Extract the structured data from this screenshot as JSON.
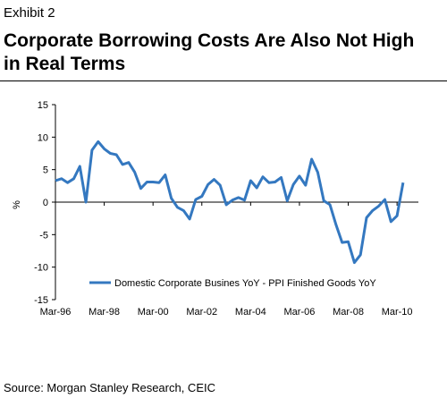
{
  "header": {
    "exhibit": "Exhibit 2",
    "title": "Corporate Borrowing Costs Are Also Not High in Real Terms"
  },
  "footer": {
    "source": "Source: Morgan Stanley Research, CEIC"
  },
  "colors": {
    "series": "#3478c0",
    "axis": "#000000"
  },
  "chart_data": {
    "type": "line",
    "title": "",
    "xlabel": "",
    "ylabel": "%",
    "ylim": [
      -15,
      15
    ],
    "yticks": [
      15,
      10,
      5,
      0,
      -5,
      -10,
      -15
    ],
    "xticks": [
      "Mar-96",
      "Mar-98",
      "Mar-00",
      "Mar-02",
      "Mar-04",
      "Mar-06",
      "Mar-08",
      "Mar-10"
    ],
    "grid": false,
    "legend_position": "bottom-right",
    "series": [
      {
        "name": "Domestic Corporate Busines YoY - PPI Finished Goods YoY",
        "x": [
          "Mar-96",
          "Jun-96",
          "Sep-96",
          "Dec-96",
          "Mar-97",
          "Jun-97",
          "Sep-97",
          "Dec-97",
          "Mar-98",
          "Jun-98",
          "Sep-98",
          "Dec-98",
          "Mar-99",
          "Jun-99",
          "Sep-99",
          "Dec-99",
          "Mar-00",
          "Jun-00",
          "Sep-00",
          "Dec-00",
          "Mar-01",
          "Jun-01",
          "Sep-01",
          "Dec-01",
          "Mar-02",
          "Jun-02",
          "Sep-02",
          "Dec-02",
          "Mar-03",
          "Jun-03",
          "Sep-03",
          "Dec-03",
          "Mar-04",
          "Jun-04",
          "Sep-04",
          "Dec-04",
          "Mar-05",
          "Jun-05",
          "Sep-05",
          "Dec-05",
          "Mar-06",
          "Jun-06",
          "Sep-06",
          "Dec-06",
          "Mar-07",
          "Jun-07",
          "Sep-07",
          "Dec-07",
          "Mar-08",
          "Jun-08",
          "Sep-08",
          "Dec-08",
          "Mar-09",
          "Jun-09",
          "Sep-09",
          "Dec-09",
          "Mar-10",
          "Jun-10"
        ],
        "values": [
          3.3,
          3.6,
          3.0,
          3.6,
          5.5,
          0.0,
          8.0,
          9.3,
          8.2,
          7.5,
          7.3,
          5.8,
          6.1,
          4.6,
          2.1,
          3.1,
          3.1,
          3.0,
          4.2,
          0.6,
          -0.8,
          -1.3,
          -2.6,
          0.4,
          0.9,
          2.7,
          3.5,
          2.6,
          -0.4,
          0.3,
          0.7,
          0.3,
          3.3,
          2.2,
          3.9,
          3.0,
          3.1,
          3.8,
          0.2,
          2.7,
          4.0,
          2.6,
          6.6,
          4.6,
          0.2,
          -0.4,
          -3.5,
          -6.2,
          -6.1,
          -9.3,
          -8.1,
          -2.4,
          -1.3,
          -0.6,
          0.4,
          -3.0,
          -2.1,
          3.0
        ]
      }
    ]
  }
}
